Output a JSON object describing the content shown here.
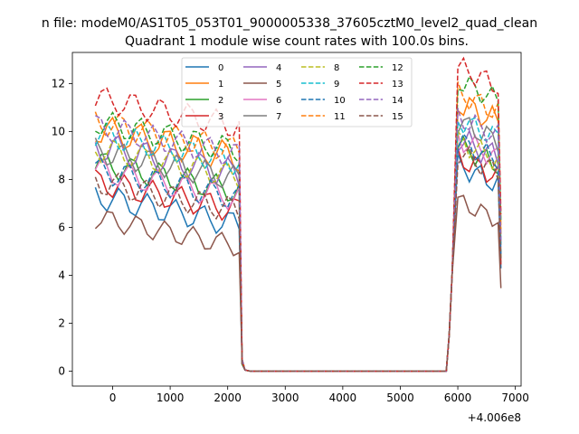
{
  "chart_data": {
    "type": "line",
    "suptitle": "n file: modeM0/AS1T05_053T01_9000005338_37605cztM0_level2_quad_clean",
    "title": "Quadrant 1 module wise count rates with 100.0s bins.",
    "xlabel": "",
    "ylabel": "",
    "x_offset_label": "+4.006e8",
    "xlim": [
      -700,
      7100
    ],
    "ylim": [
      -0.62,
      13.3
    ],
    "xticks": [
      0,
      1000,
      2000,
      3000,
      4000,
      5000,
      6000,
      7000
    ],
    "xtick_labels": [
      "0",
      "1000",
      "2000",
      "3000",
      "4000",
      "5000",
      "6000",
      "7000"
    ],
    "yticks": [
      0,
      2,
      4,
      6,
      8,
      10,
      12
    ],
    "ytick_labels": [
      "0",
      "2",
      "4",
      "6",
      "8",
      "10",
      "12"
    ],
    "grid": false,
    "legend": {
      "position": "top-center",
      "ncol": 4
    },
    "x_step": 100,
    "x_segments": [
      {
        "x_start": -300,
        "x_end": 2200
      },
      {
        "x_start": 2200,
        "x_end": 5800
      },
      {
        "x_start": 5800,
        "x_end": 6750
      }
    ],
    "series": [
      {
        "name": "0",
        "color": "#1f77b4",
        "dashed": false,
        "early": 6.5,
        "late": 7.8,
        "amp": 0.6
      },
      {
        "name": "1",
        "color": "#ff7f0e",
        "dashed": false,
        "early": 9.3,
        "late": 10.4,
        "amp": 0.7
      },
      {
        "name": "2",
        "color": "#2ca02c",
        "dashed": false,
        "early": 7.9,
        "late": 8.6,
        "amp": 0.6
      },
      {
        "name": "3",
        "color": "#d62728",
        "dashed": false,
        "early": 7.1,
        "late": 8.1,
        "amp": 0.6
      },
      {
        "name": "4",
        "color": "#9467bd",
        "dashed": false,
        "early": 8.6,
        "late": 8.9,
        "amp": 0.7
      },
      {
        "name": "5",
        "color": "#8c564b",
        "dashed": false,
        "early": 5.6,
        "late": 6.3,
        "amp": 0.5
      },
      {
        "name": "6",
        "color": "#e377c2",
        "dashed": false,
        "early": 7.6,
        "late": 8.9,
        "amp": 0.6
      },
      {
        "name": "7",
        "color": "#7f7f7f",
        "dashed": false,
        "early": 8.4,
        "late": 9.6,
        "amp": 0.6
      },
      {
        "name": "8",
        "color": "#bcbd22",
        "dashed": true,
        "early": 8.5,
        "late": 8.8,
        "amp": 0.6
      },
      {
        "name": "9",
        "color": "#17becf",
        "dashed": true,
        "early": 9.1,
        "late": 9.7,
        "amp": 0.6
      },
      {
        "name": "10",
        "color": "#1f77b4",
        "dashed": true,
        "early": 7.6,
        "late": 8.8,
        "amp": 0.6
      },
      {
        "name": "11",
        "color": "#ff7f0e",
        "dashed": true,
        "early": 9.6,
        "late": 10.8,
        "amp": 0.6
      },
      {
        "name": "12",
        "color": "#2ca02c",
        "dashed": true,
        "early": 9.6,
        "late": 11.3,
        "amp": 0.6
      },
      {
        "name": "13",
        "color": "#d62728",
        "dashed": true,
        "early": 10.6,
        "late": 11.9,
        "amp": 0.6
      },
      {
        "name": "14",
        "color": "#9467bd",
        "dashed": true,
        "early": 9.4,
        "late": 9.8,
        "amp": 0.6
      },
      {
        "name": "15",
        "color": "#8c564b",
        "dashed": true,
        "early": 7.1,
        "late": 8.3,
        "amp": 0.6
      }
    ]
  }
}
